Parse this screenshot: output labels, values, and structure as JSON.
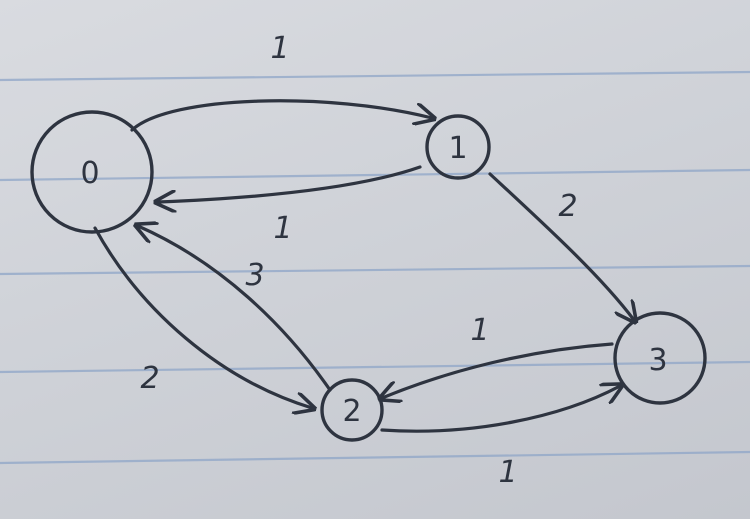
{
  "graph": {
    "nodes": [
      {
        "id": "0",
        "label": "0",
        "double_ring": true
      },
      {
        "id": "1",
        "label": "1",
        "double_ring": false
      },
      {
        "id": "2",
        "label": "2",
        "double_ring": false
      },
      {
        "id": "3",
        "label": "3",
        "double_ring": false
      }
    ],
    "edges": [
      {
        "from": "0",
        "to": "1",
        "weight": "1"
      },
      {
        "from": "1",
        "to": "0",
        "weight": "1"
      },
      {
        "from": "1",
        "to": "3",
        "weight": "2"
      },
      {
        "from": "0",
        "to": "2",
        "weight": "2"
      },
      {
        "from": "2",
        "to": "0",
        "weight": "3"
      },
      {
        "from": "3",
        "to": "2",
        "weight": "1"
      },
      {
        "from": "2",
        "to": "3",
        "weight": "1"
      }
    ]
  },
  "colors": {
    "ink": "#2e3440",
    "paper": "#d6d8de",
    "ruling": "#8fa6c8"
  }
}
